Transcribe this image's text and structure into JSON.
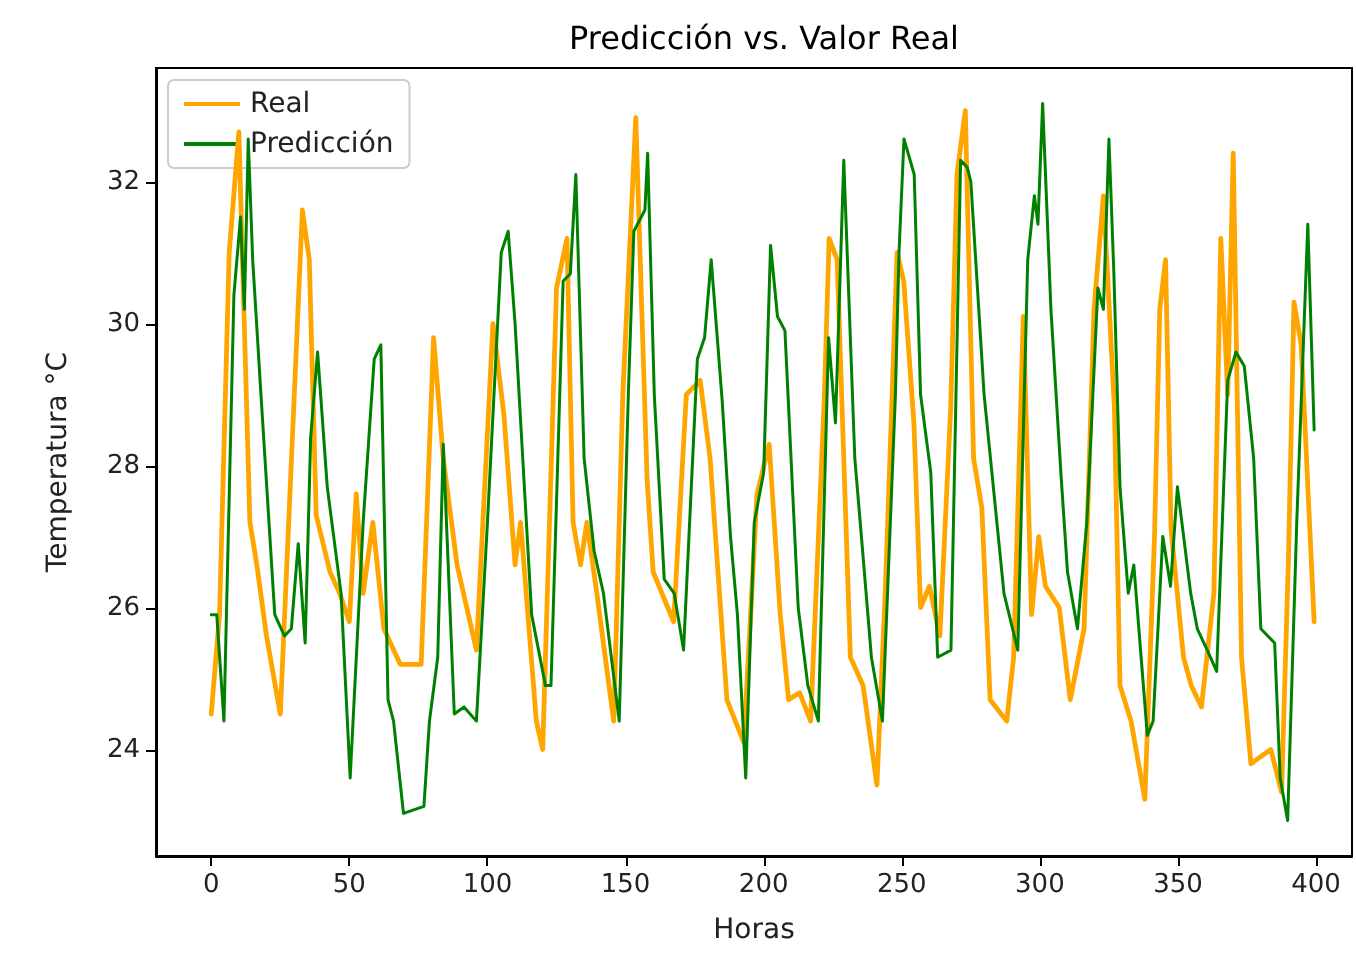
{
  "chart_data": {
    "type": "line",
    "title": "Predicción vs. Valor Real",
    "xlabel": "Horas",
    "ylabel": "Temperatura °C",
    "xlim": [
      -20,
      413
    ],
    "ylim": [
      22.5,
      33.6
    ],
    "xticks": [
      0,
      50,
      100,
      150,
      200,
      250,
      300,
      350,
      400
    ],
    "yticks": [
      24,
      26,
      28,
      30,
      32
    ],
    "grid": false,
    "legend": "top left",
    "marker": "none",
    "line_style": "solid",
    "series": [
      {
        "name": "Real",
        "color": "#ffa500",
        "x": [
          0,
          3,
          6.5,
          10,
          14,
          16.5,
          20,
          25,
          33,
          35.5,
          38,
          43,
          46.5,
          50,
          52.5,
          55,
          58.5,
          62.5,
          68.4,
          76,
          80.5,
          84,
          89,
          96,
          102,
          106,
          110,
          112,
          117.7,
          120,
          125,
          128.8,
          131,
          133.7,
          136,
          139.6,
          145.7,
          149,
          153.7,
          157.8,
          160,
          167.4,
          172,
          177,
          180.6,
          186.7,
          192.8,
          197.6,
          202,
          206,
          209,
          213,
          217,
          222,
          223.7,
          226.6,
          229,
          231.4,
          236,
          241,
          244,
          248.3,
          250.7,
          254.4,
          256.8,
          260,
          263.8,
          267.7,
          270,
          273,
          276,
          279,
          282,
          288,
          290.5,
          294,
          297,
          299.6,
          302,
          307,
          311,
          316,
          319.6,
          323,
          327,
          329,
          333,
          338,
          341.5,
          343.4,
          345.5,
          347.5,
          352,
          354.8,
          358.5,
          363,
          365.5,
          368,
          370,
          373,
          376.4,
          383.6,
          387.5,
          390,
          392,
          394.6,
          399.3
        ],
        "values": [
          24.5,
          25.9,
          31.0,
          32.7,
          27.2,
          26.6,
          25.6,
          24.5,
          31.6,
          30.9,
          27.3,
          26.5,
          26.2,
          25.8,
          27.6,
          26.2,
          27.2,
          25.7,
          25.2,
          25.2,
          29.8,
          28.1,
          26.6,
          25.4,
          30.0,
          28.7,
          26.6,
          27.2,
          24.4,
          24.0,
          30.5,
          31.2,
          27.2,
          26.6,
          27.2,
          26.2,
          24.4,
          29.0,
          32.9,
          27.8,
          26.5,
          25.8,
          29.0,
          29.2,
          28.1,
          24.7,
          24.1,
          27.6,
          28.3,
          25.9,
          24.7,
          24.8,
          24.4,
          29.0,
          31.2,
          30.9,
          28.1,
          25.3,
          24.9,
          23.5,
          26.2,
          31.0,
          30.6,
          28.6,
          26.0,
          26.3,
          25.6,
          28.8,
          32.1,
          33.0,
          28.1,
          27.4,
          24.7,
          24.4,
          25.3,
          30.1,
          25.9,
          27.0,
          26.3,
          26.0,
          24.7,
          25.7,
          30.2,
          31.8,
          28.8,
          24.9,
          24.4,
          23.3,
          27.0,
          30.2,
          30.9,
          27.1,
          25.3,
          24.9,
          24.6,
          26.2,
          31.2,
          29.0,
          32.4,
          25.3,
          23.8,
          24.0,
          23.4,
          26.7,
          30.3,
          29.7,
          25.8
        ]
      },
      {
        "name": "Predicción",
        "color": "#008000",
        "x": [
          0,
          2,
          4.6,
          8.2,
          10.6,
          12,
          13.4,
          15,
          18,
          23,
          26.5,
          29,
          31.5,
          34,
          36,
          38.5,
          42,
          47,
          50.3,
          55,
          59,
          61.4,
          64,
          66,
          69.6,
          77,
          79,
          82,
          84,
          88,
          91.5,
          96,
          100,
          105,
          107.5,
          110,
          116,
          121,
          123,
          127.4,
          130,
          132,
          135,
          138.6,
          142,
          147.7,
          151,
          153,
          157,
          158,
          160.4,
          164,
          167.6,
          171,
          176,
          178.6,
          181,
          185,
          188,
          190.5,
          193.5,
          196.6,
          200,
          202.5,
          205,
          207.7,
          212.5,
          216,
          219.8,
          223.5,
          226,
          229,
          233,
          235.6,
          239,
          243,
          247.7,
          249,
          250.8,
          254.5,
          256.8,
          260.5,
          263,
          267.8,
          271.3,
          273.7,
          275,
          279.8,
          283.4,
          287,
          292,
          295.6,
          298,
          299.3,
          301,
          304,
          307.6,
          310,
          313.6,
          317,
          321,
          323,
          325,
          326.8,
          329,
          332,
          334,
          338.9,
          341,
          344.5,
          347.3,
          349.8,
          354.6,
          357,
          360.6,
          364,
          368,
          371,
          374,
          377.4,
          380,
          385,
          387,
          389.7,
          393,
          397,
          399.3
        ],
        "values": [
          25.9,
          25.9,
          24.4,
          30.4,
          31.5,
          30.2,
          32.6,
          30.9,
          29.0,
          25.9,
          25.6,
          25.7,
          26.9,
          25.5,
          28.4,
          29.6,
          27.7,
          26.2,
          23.6,
          27.2,
          29.5,
          29.7,
          24.7,
          24.4,
          23.1,
          23.2,
          24.4,
          25.3,
          28.3,
          24.5,
          24.6,
          24.4,
          27.2,
          31.0,
          31.3,
          30.0,
          25.9,
          24.9,
          24.9,
          30.6,
          30.7,
          32.1,
          28.1,
          26.8,
          26.2,
          24.4,
          29.0,
          31.3,
          31.6,
          32.4,
          29.0,
          26.4,
          26.2,
          25.4,
          29.5,
          29.8,
          30.9,
          28.9,
          27.0,
          25.9,
          23.6,
          27.2,
          27.9,
          31.1,
          30.1,
          29.9,
          26.0,
          24.9,
          24.4,
          29.8,
          28.6,
          32.3,
          28.1,
          26.9,
          25.3,
          24.4,
          29.0,
          31.0,
          32.6,
          32.1,
          29.0,
          27.9,
          25.3,
          25.4,
          32.3,
          32.2,
          32.0,
          29.0,
          27.6,
          26.2,
          25.4,
          30.9,
          31.8,
          31.4,
          33.1,
          30.2,
          27.9,
          26.5,
          25.7,
          27.2,
          30.5,
          30.2,
          32.6,
          30.7,
          27.7,
          26.2,
          26.6,
          24.2,
          24.4,
          27.0,
          26.3,
          27.7,
          26.2,
          25.7,
          25.4,
          25.1,
          29.2,
          29.6,
          29.4,
          28.1,
          25.7,
          25.5,
          23.6,
          23.0,
          27.2,
          31.4,
          28.5
        ]
      }
    ]
  }
}
